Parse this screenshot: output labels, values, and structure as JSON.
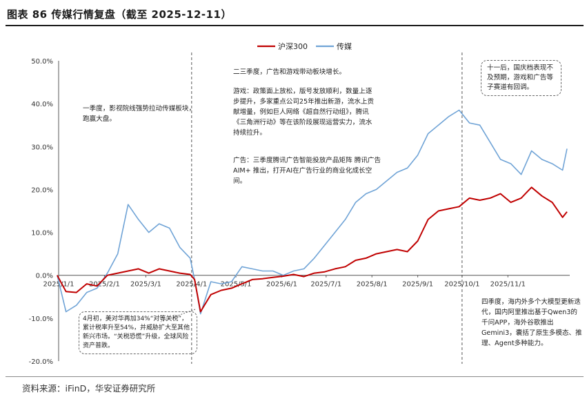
{
  "title": "图表 86 传媒行情复盘（截至 2025-12-11）",
  "source": "资料来源：iFinD，华安证券研究所",
  "chart_data": {
    "type": "line",
    "x": [
      "2024-12-31",
      "2025-01-06",
      "2025-01-13",
      "2025-01-20",
      "2025-01-27",
      "2025-02-03",
      "2025-02-10",
      "2025-02-17",
      "2025-02-24",
      "2025-03-03",
      "2025-03-10",
      "2025-03-17",
      "2025-03-24",
      "2025-03-31",
      "2025-04-03",
      "2025-04-07",
      "2025-04-14",
      "2025-04-21",
      "2025-04-28",
      "2025-05-05",
      "2025-05-12",
      "2025-05-19",
      "2025-05-26",
      "2025-06-02",
      "2025-06-09",
      "2025-06-16",
      "2025-06-23",
      "2025-06-30",
      "2025-07-07",
      "2025-07-14",
      "2025-07-21",
      "2025-07-28",
      "2025-08-04",
      "2025-08-11",
      "2025-08-18",
      "2025-08-25",
      "2025-09-01",
      "2025-09-08",
      "2025-09-15",
      "2025-09-22",
      "2025-09-29",
      "2025-10-06",
      "2025-10-13",
      "2025-10-20",
      "2025-10-27",
      "2025-11-03",
      "2025-11-10",
      "2025-11-17",
      "2025-11-24",
      "2025-12-01",
      "2025-12-08",
      "2025-12-11"
    ],
    "series": [
      {
        "name": "沪深300",
        "color": "#c00000",
        "values": [
          0.0,
          -3.8,
          -4.0,
          -2.0,
          -2.5,
          0.0,
          0.5,
          1.0,
          1.5,
          0.5,
          1.5,
          1.0,
          0.5,
          0.2,
          -1.0,
          -8.5,
          -4.5,
          -3.5,
          -3.0,
          -2.0,
          -1.0,
          -0.8,
          -0.5,
          -0.2,
          0.2,
          -0.3,
          0.5,
          0.8,
          1.5,
          2.0,
          3.5,
          4.0,
          5.0,
          5.5,
          6.0,
          5.5,
          8.0,
          13.0,
          15.0,
          15.5,
          16.0,
          18.0,
          17.5,
          18.0,
          19.0,
          17.0,
          18.0,
          20.5,
          18.5,
          17.0,
          13.5,
          14.8
        ]
      },
      {
        "name": "传媒",
        "color": "#6fa3d6",
        "values": [
          0.0,
          -8.5,
          -7.0,
          -4.0,
          -3.0,
          0.5,
          5.0,
          16.5,
          13.0,
          10.0,
          12.0,
          11.0,
          6.5,
          4.0,
          -1.0,
          -9.0,
          -1.5,
          -2.0,
          -1.5,
          2.0,
          1.5,
          1.0,
          1.0,
          0.0,
          1.0,
          1.5,
          4.0,
          7.0,
          10.0,
          13.0,
          17.0,
          19.0,
          20.0,
          22.0,
          24.0,
          25.0,
          28.0,
          33.0,
          35.0,
          37.0,
          38.5,
          35.5,
          35.0,
          31.0,
          27.0,
          26.0,
          23.5,
          29.0,
          27.0,
          26.0,
          24.5,
          29.5
        ]
      }
    ],
    "x_tick_labels": [
      "2025/1/1",
      "2025/2/1",
      "2025/3/1",
      "2025/4/1",
      "2025/5/1",
      "2025/6/1",
      "2025/7/1",
      "2025/8/1",
      "2025/9/1",
      "2025/10/1",
      "2025/11/1"
    ],
    "y_tick_labels": [
      "50.0%",
      "40.0%",
      "30.0%",
      "20.0%",
      "10.0%",
      "0.0%",
      "-10.0%",
      "-20.0%"
    ],
    "ylim": [
      -20,
      50
    ],
    "y_unit": "%",
    "legend_position": "top-center",
    "annotations": [
      {
        "text": "一季度，影视院线强势拉动传媒板块，跑赢大盘。"
      },
      {
        "text": "二三季度，广告和游戏带动板块增长。"
      },
      {
        "text": "游戏：政策面上放松，版号发放顺利，数量上逐步提升，多家重点公司25年推出新游，流水上贡献增量，例如巨人网络《超自然行动组》，腾讯《三角洲行动》等在该阶段展现运营实力，流水持续拉升。"
      },
      {
        "text": "广告：三季度腾讯广告智能投放产品矩阵 腾讯广告 AIM+ 推出，打开AI在广告行业的商业化成长空间。"
      },
      {
        "text": "十一后，国庆档表现不及预期，游戏和广告等子赛道有回调。"
      },
      {
        "text": "4月初，美对华再加34%“对等关税”，累计税率升至54%，并威胁扩大至其他新兴市场。“关税恐慌”升级，全球风险资产普跌。"
      },
      {
        "text": "四季度，海内外多个大模型更新迭代，国内阿里推出基于Qwen3的千问APP，海外谷歌推出Gemini3，囊括了原生多模态、推理、Agent多种能力。"
      }
    ]
  }
}
